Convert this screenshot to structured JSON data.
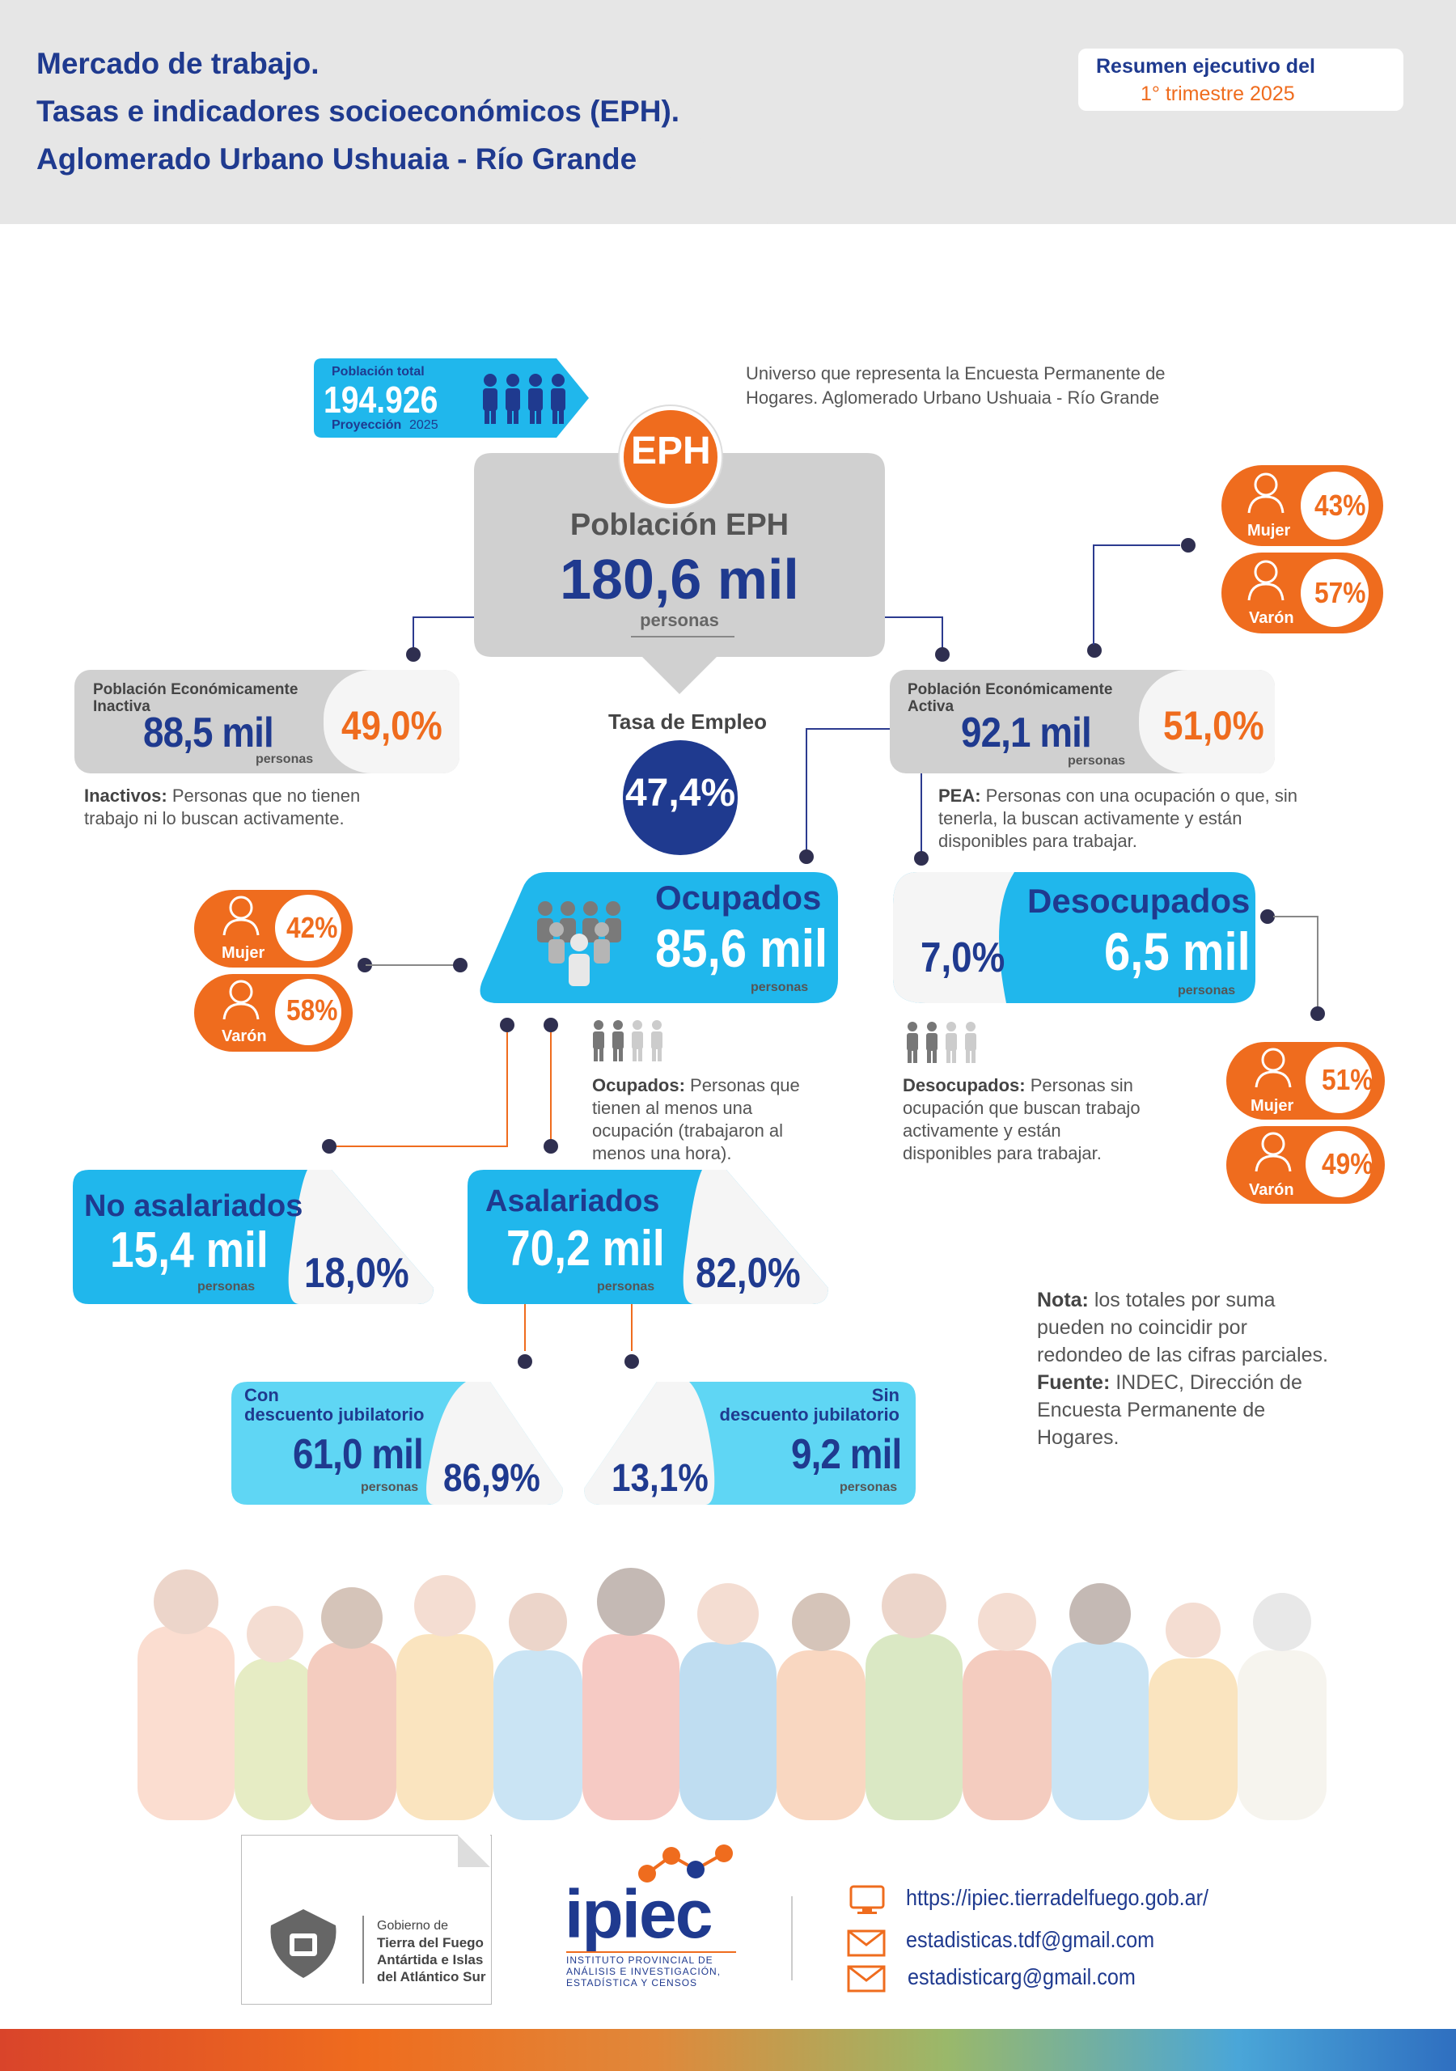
{
  "header": {
    "title_lines": [
      "Mercado de trabajo.",
      "Tasas e indicadores socioeconómicos (EPH).",
      "Aglomerado Urbano Ushuaia - Río Grande"
    ],
    "resumen_label": "Resumen ejecutivo del",
    "resumen_period": "1° trimestre 2025"
  },
  "poblacion_total": {
    "label": "Población total",
    "value": "194.926",
    "proj_label": "Proyección",
    "proj_year": "2025"
  },
  "universo_text": [
    "Universo que representa la Encuesta Permanente de",
    "Hogares. Aglomerado Urbano Ushuaia - Río Grande"
  ],
  "eph": {
    "logo": "EPH",
    "label": "Población EPH",
    "value": "180,6 mil",
    "unit": "personas"
  },
  "tasa_empleo": {
    "label": "Tasa de Empleo",
    "value": "47,4%"
  },
  "inactiva": {
    "label_l1": "Población Económicamente",
    "label_l2": "Inactiva",
    "value": "88,5 mil",
    "unit": "personas",
    "pct": "49,0%",
    "desc_bold": "Inactivos:",
    "desc_rest1": " Personas que no tienen",
    "desc_rest2": "trabajo ni lo buscan activamente."
  },
  "activa": {
    "label_l1": "Población Económicamente",
    "label_l2": "Activa",
    "value": "92,1 mil",
    "unit": "personas",
    "pct": "51,0%",
    "desc_bold": "PEA:",
    "desc_rest1": " Personas con una ocupación o que, sin",
    "desc_rest2": "tenerla, la buscan activamente y están",
    "desc_rest3": "disponibles para trabajar."
  },
  "activa_gender": {
    "mujer_label": "Mujer",
    "mujer_pct": "43%",
    "varon_label": "Varón",
    "varon_pct": "57%"
  },
  "ocupados": {
    "label": "Ocupados",
    "value": "85,6 mil",
    "unit": "personas",
    "desc_bold": "Ocupados:",
    "desc_l1": " Personas que",
    "desc_l2": "tienen al menos una",
    "desc_l3": "ocupación (trabajaron al",
    "desc_l4": "menos una hora)."
  },
  "ocupados_gender": {
    "mujer_label": "Mujer",
    "mujer_pct": "42%",
    "varon_label": "Varón",
    "varon_pct": "58%"
  },
  "desocupados": {
    "label": "Desocupados",
    "value": "6,5 mil",
    "unit": "personas",
    "pct": "7,0%",
    "desc_bold": "Desocupados:",
    "desc_l1": " Personas sin",
    "desc_l2": "ocupación que buscan trabajo",
    "desc_l3": "activamente y están",
    "desc_l4": "disponibles para trabajar."
  },
  "desocupados_gender": {
    "mujer_label": "Mujer",
    "mujer_pct": "51%",
    "varon_label": "Varón",
    "varon_pct": "49%"
  },
  "no_asalariados": {
    "label": "No asalariados",
    "value": "15,4 mil",
    "unit": "personas",
    "pct": "18,0%"
  },
  "asalariados": {
    "label": "Asalariados",
    "value": "70,2 mil",
    "unit": "personas",
    "pct": "82,0%"
  },
  "con_descuento": {
    "label_l1": "Con",
    "label_l2": "descuento jubilatorio",
    "value": "61,0 mil",
    "unit": "personas",
    "pct": "86,9%"
  },
  "sin_descuento": {
    "label_l1": "Sin",
    "label_l2": "descuento jubilatorio",
    "value": "9,2 mil",
    "unit": "personas",
    "pct": "13,1%"
  },
  "nota": {
    "bold1": "Nota:",
    "l1": " los totales por suma",
    "l2": "pueden no coincidir por",
    "l3": "redondeo de las cifras parciales.",
    "bold2": "Fuente:",
    "l4": " INDEC, Dirección de",
    "l5": "Encuesta Permanente de",
    "l6": "Hogares."
  },
  "footer": {
    "gob_l1": "Gobierno de",
    "gob_l2": "Tierra del Fuego",
    "gob_l3": "Antártida e Islas",
    "gob_l4": "del Atlántico Sur",
    "ipiec": "ipiec",
    "ipiec_sub1": "INSTITUTO PROVINCIAL DE",
    "ipiec_sub2": "ANÁLISIS E INVESTIGACIÓN,",
    "ipiec_sub3": "ESTADÍSTICA Y CENSOS",
    "web": "https://ipiec.tierradelfuego.gob.ar/",
    "email1": "estadisticas.tdf@gmail.com",
    "email2": "estadisticarg@gmail.com"
  },
  "colors": {
    "navy": "#1f3a8f",
    "orange": "#ef6c1e",
    "cyan": "#20b7ec",
    "light_cyan": "#5fd6f4",
    "grey": "#d0d0d0"
  }
}
